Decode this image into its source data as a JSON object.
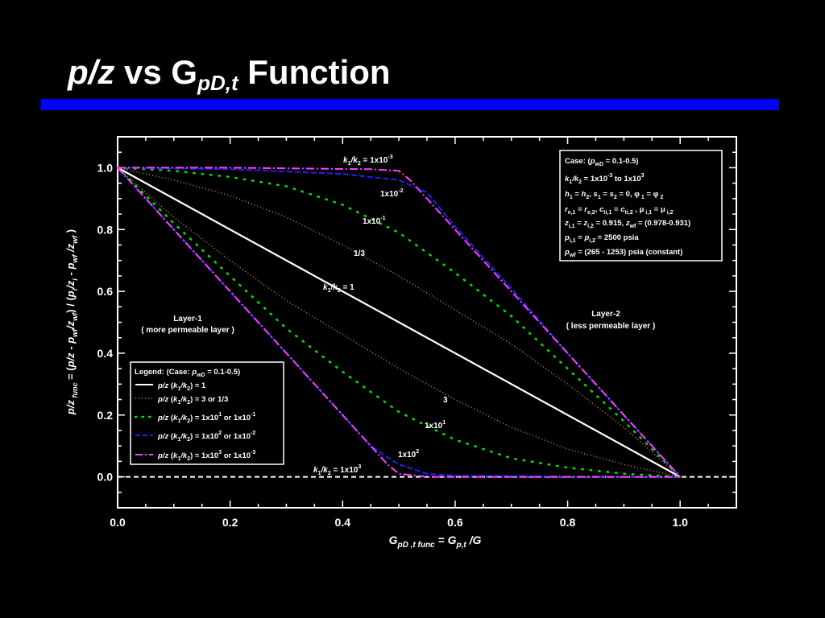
{
  "slide": {
    "title_parts": {
      "lead": "p/z",
      "mid": " vs G",
      "sub": "pD,t",
      "tail": " Function"
    }
  },
  "colors": {
    "background": "#000000",
    "accent_bar": "#0000ff",
    "series_1": "#ffffff",
    "series_3": "#c8a000",
    "series_10": "#00dd00",
    "series_100": "#2020ff",
    "series_1000": "#ff40ff"
  },
  "chart_data": {
    "type": "line",
    "xlabel": "G_pD,t func = G_p,t /G",
    "ylabel": "p/z func = (p/z - p_wf/z_wf) / (p_i/z_i - p_wf/z_wf)",
    "xlim": [
      0.0,
      1.1
    ],
    "ylim": [
      -0.1,
      1.1
    ],
    "x_ticks": [
      "0.0",
      "0.2",
      "0.4",
      "0.6",
      "0.8",
      "1.0"
    ],
    "y_ticks": [
      "0.0",
      "0.2",
      "0.4",
      "0.6",
      "0.8",
      "1.0"
    ],
    "grid": false,
    "zero_line": true,
    "series": [
      {
        "name": "p/z (k1/k2) = 1",
        "points": [
          [
            0.0,
            1.0
          ],
          [
            1.0,
            0.0
          ]
        ]
      },
      {
        "name": "p/z (k1/k2) = 3 (Layer-2 side)",
        "points": [
          [
            0.0,
            1.0
          ],
          [
            0.1,
            0.96
          ],
          [
            0.2,
            0.91
          ],
          [
            0.3,
            0.84
          ],
          [
            0.4,
            0.75
          ],
          [
            0.5,
            0.65
          ],
          [
            0.6,
            0.54
          ],
          [
            0.7,
            0.43
          ],
          [
            0.8,
            0.3
          ],
          [
            0.9,
            0.16
          ],
          [
            1.0,
            0.0
          ]
        ]
      },
      {
        "name": "p/z (k1/k2) = 1/3 (Layer-1 side)",
        "points": [
          [
            0.0,
            1.0
          ],
          [
            0.1,
            0.84
          ],
          [
            0.2,
            0.7
          ],
          [
            0.3,
            0.57
          ],
          [
            0.4,
            0.46
          ],
          [
            0.5,
            0.35
          ],
          [
            0.6,
            0.25
          ],
          [
            0.7,
            0.16
          ],
          [
            0.8,
            0.09
          ],
          [
            0.9,
            0.04
          ],
          [
            1.0,
            0.0
          ]
        ]
      },
      {
        "name": "p/z (k1/k2) = 1x10^-1",
        "points": [
          [
            0.0,
            1.0
          ],
          [
            0.1,
            0.99
          ],
          [
            0.2,
            0.97
          ],
          [
            0.3,
            0.94
          ],
          [
            0.4,
            0.88
          ],
          [
            0.5,
            0.79
          ],
          [
            0.6,
            0.66
          ],
          [
            0.7,
            0.52
          ],
          [
            0.8,
            0.35
          ],
          [
            0.9,
            0.18
          ],
          [
            1.0,
            0.0
          ]
        ]
      },
      {
        "name": "p/z (k1/k2) = 1x10^1",
        "points": [
          [
            0.0,
            1.0
          ],
          [
            0.1,
            0.82
          ],
          [
            0.2,
            0.65
          ],
          [
            0.3,
            0.48
          ],
          [
            0.4,
            0.34
          ],
          [
            0.5,
            0.21
          ],
          [
            0.6,
            0.12
          ],
          [
            0.7,
            0.06
          ],
          [
            0.8,
            0.03
          ],
          [
            0.9,
            0.01
          ],
          [
            1.0,
            0.0
          ]
        ]
      },
      {
        "name": "p/z (k1/k2) = 1x10^-2",
        "points": [
          [
            0.0,
            1.0
          ],
          [
            0.2,
            0.995
          ],
          [
            0.4,
            0.98
          ],
          [
            0.5,
            0.96
          ],
          [
            0.55,
            0.92
          ],
          [
            0.6,
            0.81
          ],
          [
            0.7,
            0.61
          ],
          [
            0.8,
            0.4
          ],
          [
            0.9,
            0.2
          ],
          [
            1.0,
            0.0
          ]
        ]
      },
      {
        "name": "p/z (k1/k2) = 1x10^2",
        "points": [
          [
            0.0,
            1.0
          ],
          [
            0.1,
            0.8
          ],
          [
            0.2,
            0.6
          ],
          [
            0.3,
            0.4
          ],
          [
            0.4,
            0.2
          ],
          [
            0.45,
            0.1
          ],
          [
            0.5,
            0.04
          ],
          [
            0.55,
            0.01
          ],
          [
            0.6,
            0.004
          ],
          [
            0.8,
            0.001
          ],
          [
            1.0,
            0.0
          ]
        ]
      },
      {
        "name": "p/z (k1/k2) = 1x10^-3",
        "points": [
          [
            0.0,
            1.0
          ],
          [
            0.2,
            1.0
          ],
          [
            0.45,
            0.995
          ],
          [
            0.5,
            0.99
          ],
          [
            0.52,
            0.96
          ],
          [
            0.6,
            0.8
          ],
          [
            0.7,
            0.6
          ],
          [
            0.8,
            0.4
          ],
          [
            0.9,
            0.2
          ],
          [
            1.0,
            0.0
          ]
        ]
      },
      {
        "name": "p/z (k1/k2) = 1x10^3",
        "points": [
          [
            0.0,
            1.0
          ],
          [
            0.1,
            0.8
          ],
          [
            0.2,
            0.6
          ],
          [
            0.3,
            0.4
          ],
          [
            0.4,
            0.2
          ],
          [
            0.48,
            0.04
          ],
          [
            0.5,
            0.01
          ],
          [
            0.55,
            0.0
          ],
          [
            1.0,
            0.0
          ]
        ]
      }
    ],
    "curve_labels": {
      "k_1000_inv": "k1/k2 = 1x10-3",
      "k_100_inv": "1x10-2",
      "k_10_inv": "1x10-1",
      "k_3_inv": "1/3",
      "k_1": "k1/k2 = 1",
      "k_3": "3",
      "k_10": "1x101",
      "k_100": "1x102",
      "k_1000": "k1/k2 = 1x103"
    },
    "region_labels": {
      "layer1_line1": "Layer-1",
      "layer1_line2": "( more permeable layer )",
      "layer2_line1": "Layer-2",
      "layer2_line2": "( less permeable layer )"
    },
    "case_box": {
      "line1": "Case: (pwD = 0.1-0.5)",
      "line2": "k1/k2 = 1x10-3 to 1x103",
      "line3": "h1 = h2, s1 = s2 = 0, φ1 = φ2",
      "line4": "re,1 = re,2, cti,1 = cti,2 , μi,1 = μi,2",
      "line5": "zi,1 = zi,2 = 0.915, zwf = (0.978-0.931)",
      "line6": "pi,1 = pi,2 = 2500 psia",
      "line7": "pwf = (265 - 1253) psia (constant)"
    },
    "legend": {
      "title": "Legend: (Case: pwD = 0.1-0.5)",
      "entry1": "p/z (k1/k2) = 1",
      "entry2": "p/z (k1/k2) = 3 or 1/3",
      "entry3": "p/z (k1/k2) = 1x101 or 1x10-1",
      "entry4": "p/z (k1/k2) = 1x102 or 1x10-2",
      "entry5": "p/z (k1/k2) = 1x103 or 1x10-3",
      "placement": "lower-left"
    }
  }
}
